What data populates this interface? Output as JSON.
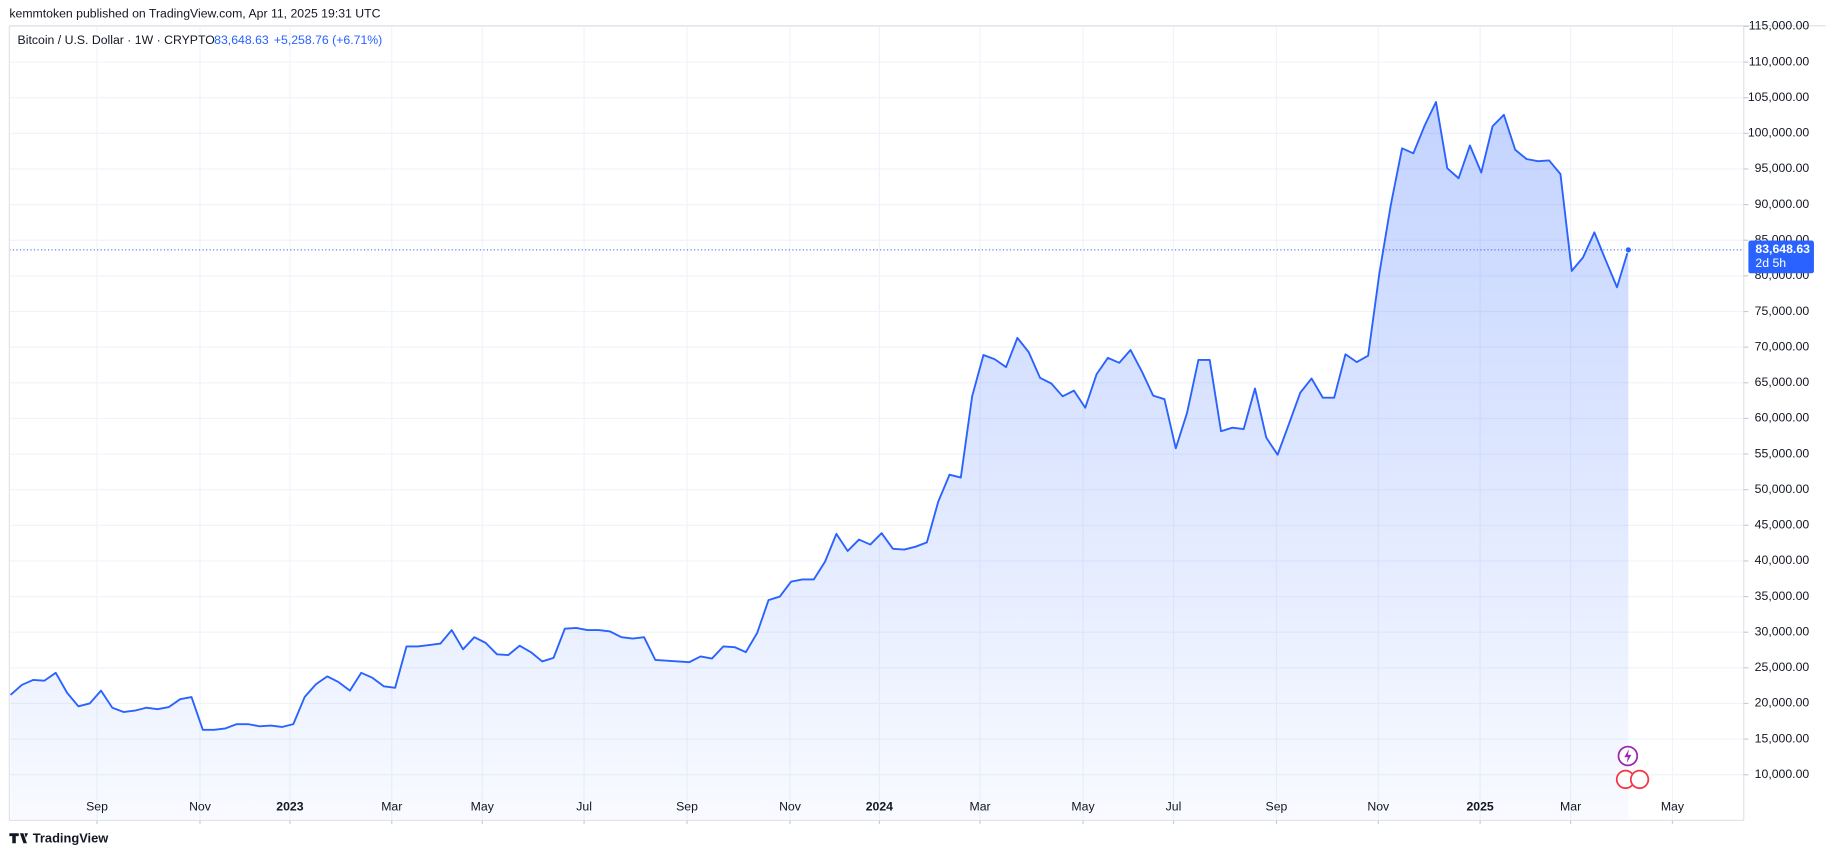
{
  "header": {
    "publisher": "kemmtoken published on TradingView.com, Apr 11, 2025 19:31 UTC"
  },
  "footer": {
    "brand": "TradingView"
  },
  "chart_data": {
    "type": "area",
    "title": "Bitcoin / U.S. Dollar · 1W · CRYPTO",
    "last_price_label": "83,648.63",
    "change": "+5,258.76 (+6.71%)",
    "countdown": "2d 5h",
    "color": "#2962ff",
    "grid": true,
    "values": [
      21200,
      22600,
      23300,
      23200,
      24300,
      21500,
      19600,
      20000,
      21800,
      19400,
      18800,
      19000,
      19400,
      19200,
      19500,
      20600,
      20900,
      16300,
      16300,
      16500,
      17100,
      17100,
      16800,
      16900,
      16700,
      17100,
      20900,
      22700,
      23800,
      23000,
      21800,
      24300,
      23600,
      22400,
      22200,
      28000,
      28000,
      28200,
      28400,
      30300,
      27600,
      29300,
      28500,
      26900,
      26800,
      28100,
      27200,
      25900,
      26400,
      30500,
      30600,
      30300,
      30300,
      30100,
      29300,
      29100,
      29300,
      26100,
      26000,
      25900,
      25800,
      26600,
      26300,
      28000,
      27900,
      27200,
      29900,
      34500,
      35000,
      37100,
      37400,
      37400,
      39900,
      43800,
      41400,
      43000,
      42300,
      43900,
      41700,
      41600,
      42000,
      42600,
      48300,
      52100,
      51700,
      63100,
      68900,
      68300,
      67200,
      71300,
      69300,
      65700,
      64900,
      63100,
      63900,
      61500,
      66200,
      68500,
      67800,
      69600,
      66600,
      63200,
      62700,
      55800,
      60800,
      68200,
      68200,
      58200,
      58700,
      58500,
      64200,
      57300,
      54900,
      59200,
      63600,
      65600,
      62900,
      62900,
      69000,
      67900,
      68800,
      80400,
      89900,
      97900,
      97200,
      101100,
      104400,
      95100,
      93700,
      98300,
      94500,
      101000,
      102600,
      97700,
      96400,
      96100,
      96200,
      94300,
      80700,
      82600,
      86100,
      82200,
      78400,
      83648.63
    ],
    "xlim": [
      -0.1,
      153.2
    ],
    "xticks": [
      {
        "value": 7.65,
        "label": "Sep"
      },
      {
        "value": 16.75,
        "label": "Nov"
      },
      {
        "value": 24.7,
        "label": "2023"
      },
      {
        "value": 33.7,
        "label": "Mar"
      },
      {
        "value": 41.7,
        "label": "May"
      },
      {
        "value": 50.7,
        "label": "Jul"
      },
      {
        "value": 59.8,
        "label": "Sep"
      },
      {
        "value": 68.9,
        "label": "Nov"
      },
      {
        "value": 76.8,
        "label": "2024"
      },
      {
        "value": 85.7,
        "label": "Mar"
      },
      {
        "value": 94.8,
        "label": "May"
      },
      {
        "value": 102.8,
        "label": "Jul"
      },
      {
        "value": 111.9,
        "label": "Sep"
      },
      {
        "value": 120.9,
        "label": "Nov"
      },
      {
        "value": 129.9,
        "label": "2025"
      },
      {
        "value": 137.9,
        "label": "Mar"
      },
      {
        "value": 146.9,
        "label": "May"
      }
    ],
    "ylim": [
      3760,
      115100
    ],
    "yticks": [
      {
        "value": 10000,
        "label": "10,000.00"
      },
      {
        "value": 15000,
        "label": "15,000.00"
      },
      {
        "value": 20000,
        "label": "20,000.00"
      },
      {
        "value": 25000,
        "label": "25,000.00"
      },
      {
        "value": 30000,
        "label": "30,000.00"
      },
      {
        "value": 35000,
        "label": "35,000.00"
      },
      {
        "value": 40000,
        "label": "40,000.00"
      },
      {
        "value": 45000,
        "label": "45,000.00"
      },
      {
        "value": 50000,
        "label": "50,000.00"
      },
      {
        "value": 55000,
        "label": "55,000.00"
      },
      {
        "value": 60000,
        "label": "60,000.00"
      },
      {
        "value": 65000,
        "label": "65,000.00"
      },
      {
        "value": 70000,
        "label": "70,000.00"
      },
      {
        "value": 75000,
        "label": "75,000.00"
      },
      {
        "value": 80000,
        "label": "80,000.00"
      },
      {
        "value": 85000,
        "label": "85,000.00"
      },
      {
        "value": 90000,
        "label": "90,000.00"
      },
      {
        "value": 95000,
        "label": "95,000.00"
      },
      {
        "value": 100000,
        "label": "100,000.00"
      },
      {
        "value": 105000,
        "label": "105,000.00"
      },
      {
        "value": 110000,
        "label": "110,000.00"
      },
      {
        "value": 115000,
        "label": "115,000.00"
      }
    ]
  }
}
